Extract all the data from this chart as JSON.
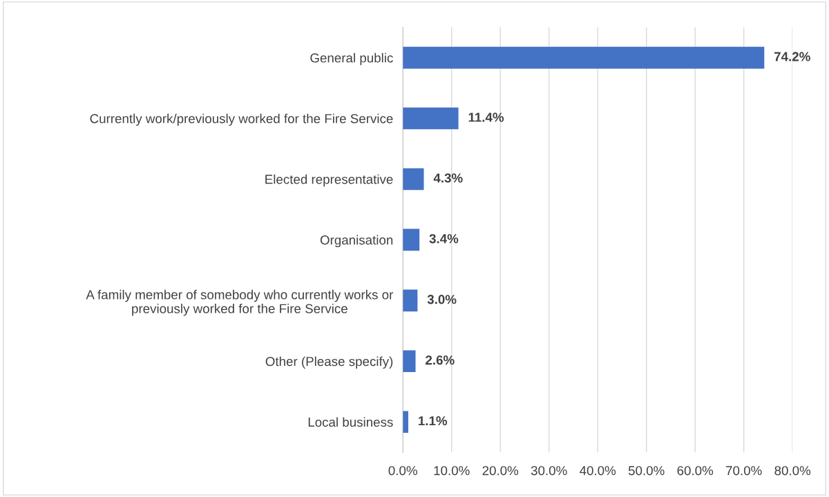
{
  "chart_data": {
    "type": "bar",
    "orientation": "horizontal",
    "categories": [
      "General public",
      "Currently work/previously worked for the Fire Service",
      "Elected representative",
      "Organisation",
      "A family member of somebody who currently works or\npreviously worked for the Fire Service",
      "Other (Please specify)",
      "Local business"
    ],
    "values": [
      74.2,
      11.4,
      4.3,
      3.4,
      3.0,
      2.6,
      1.1
    ],
    "value_labels": [
      "74.2%",
      "11.4%",
      "4.3%",
      "3.4%",
      "3.0%",
      "2.6%",
      "1.1%"
    ],
    "color": "#4472c4",
    "xlim": [
      0,
      80
    ],
    "xticks": [
      {
        "value": 0,
        "label": "0.0%"
      },
      {
        "value": 10,
        "label": "10.0%"
      },
      {
        "value": 20,
        "label": "20.0%"
      },
      {
        "value": 30,
        "label": "30.0%"
      },
      {
        "value": 40,
        "label": "40.0%"
      },
      {
        "value": 50,
        "label": "50.0%"
      },
      {
        "value": 60,
        "label": "60.0%"
      },
      {
        "value": 70,
        "label": "70.0%"
      },
      {
        "value": 80,
        "label": "80.0%"
      }
    ],
    "grid": "x",
    "legend": false
  }
}
